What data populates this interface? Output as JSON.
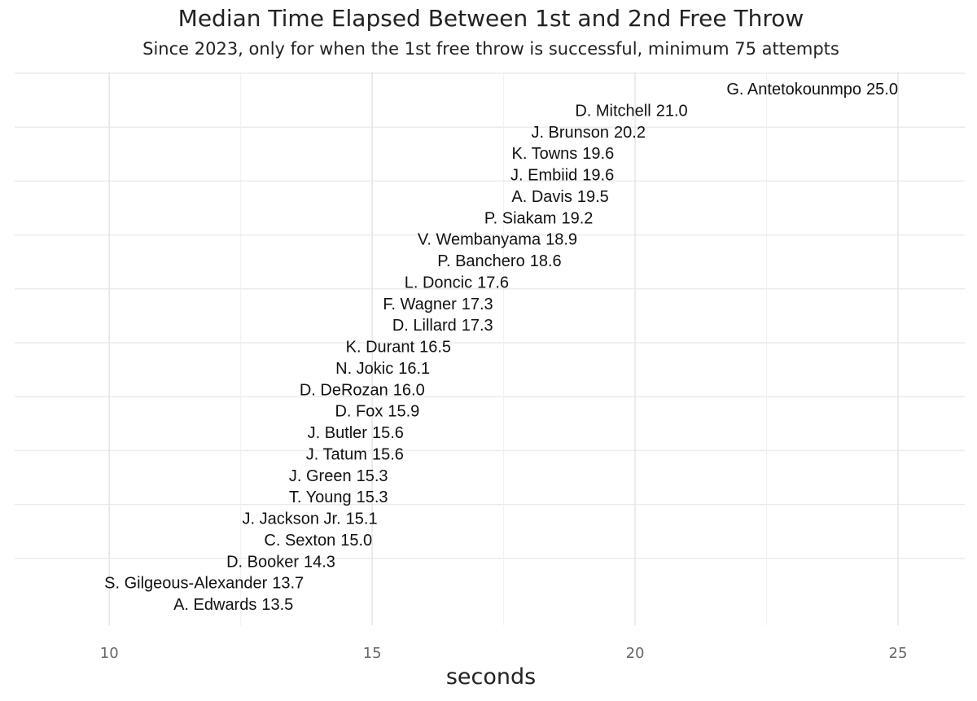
{
  "chart_data": {
    "type": "text-scatter",
    "title": "Median Time Elapsed Between 1st and 2nd Free Throw",
    "subtitle": "Since 2023, only for when the 1st free throw is successful, minimum 75 attempts",
    "x_label": "seconds",
    "categories": [
      "G. Antetokounmpo",
      "D. Mitchell",
      "J. Brunson",
      "K. Towns",
      "J. Embiid",
      "A. Davis",
      "P. Siakam",
      "V. Wembanyama",
      "P. Banchero",
      "L. Doncic",
      "F. Wagner",
      "D. Lillard",
      "K. Durant",
      "N. Jokic",
      "D. DeRozan",
      "D. Fox",
      "J. Butler",
      "J. Tatum",
      "J. Green",
      "T. Young",
      "J. Jackson Jr.",
      "C. Sexton",
      "D. Booker",
      "S. Gilgeous-Alexander",
      "A. Edwards"
    ],
    "values": [
      25,
      21,
      20.2,
      19.6,
      19.6,
      19.5,
      19.2,
      18.9,
      18.6,
      17.6,
      17.3,
      17.3,
      16.5,
      16.1,
      16,
      15.9,
      15.6,
      15.6,
      15.3,
      15.3,
      15.1,
      15,
      14.3,
      13.7,
      13.5
    ],
    "value_labels": [
      "25.0",
      "21.0",
      "20.2",
      "19.6",
      "19.6",
      "19.5",
      "19.2",
      "18.9",
      "18.6",
      "17.6",
      "17.3",
      "17.3",
      "16.5",
      "16.1",
      "16.0",
      "15.9",
      "15.6",
      "15.6",
      "15.3",
      "15.3",
      "15.1",
      "15.0",
      "14.3",
      "13.7",
      "13.5"
    ],
    "color": "#111111",
    "xlim": [
      8.2,
      26.27
    ],
    "xticks": [
      10,
      15,
      20,
      25
    ],
    "grid": true
  }
}
